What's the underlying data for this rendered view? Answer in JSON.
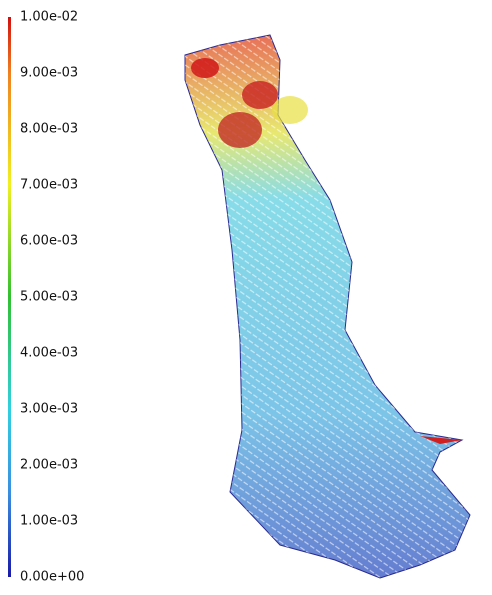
{
  "chart_data": {
    "type": "colorbar",
    "clim": [
      0,
      0.01
    ],
    "ticks": [
      {
        "value": 0,
        "label": "0.00e+00"
      },
      {
        "value": 0.001,
        "label": "1.00e-03"
      },
      {
        "value": 0.002,
        "label": "2.00e-03"
      },
      {
        "value": 0.003,
        "label": "3.00e-03"
      },
      {
        "value": 0.004,
        "label": "4.00e-03"
      },
      {
        "value": 0.005,
        "label": "5.00e-03"
      },
      {
        "value": 0.006,
        "label": "6.00e-03"
      },
      {
        "value": 0.007,
        "label": "7.00e-03"
      },
      {
        "value": 0.008,
        "label": "8.00e-03"
      },
      {
        "value": 0.009,
        "label": "9.00e-03"
      },
      {
        "value": 0.01,
        "label": "1.00e-02"
      }
    ],
    "colormap": [
      {
        "value": 0,
        "color": "#1a1aa8"
      },
      {
        "value": 0.0015,
        "color": "#3a8ee0"
      },
      {
        "value": 0.003,
        "color": "#30d0e0"
      },
      {
        "value": 0.005,
        "color": "#30c030"
      },
      {
        "value": 0.007,
        "color": "#f0f020"
      },
      {
        "value": 0.009,
        "color": "#f08020"
      },
      {
        "value": 0.01,
        "color": "#d01010"
      }
    ]
  }
}
